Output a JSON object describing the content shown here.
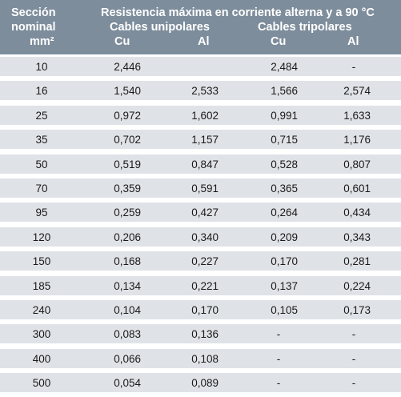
{
  "header": {
    "section_line1": "Sección",
    "section_line2": "nominal",
    "section_line3": "mm²",
    "main_title": "Resistencia máxima en corriente alterna y a 90 °C",
    "group1": "Cables unipolares",
    "group2": "Cables tripolares",
    "cu1": "Cu",
    "al1": "Al",
    "cu2": "Cu",
    "al2": "Al"
  },
  "rows": [
    [
      "10",
      "2,446",
      "",
      "2,484",
      "-"
    ],
    [
      "16",
      "1,540",
      "2,533",
      "1,566",
      "2,574"
    ],
    [
      "25",
      "0,972",
      "1,602",
      "0,991",
      "1,633"
    ],
    [
      "35",
      "0,702",
      "1,157",
      "0,715",
      "1,176"
    ],
    [
      "50",
      "0,519",
      "0,847",
      "0,528",
      "0,807"
    ],
    [
      "70",
      "0,359",
      "0,591",
      "0,365",
      "0,601"
    ],
    [
      "95",
      "0,259",
      "0,427",
      "0,264",
      "0,434"
    ],
    [
      "120",
      "0,206",
      "0,340",
      "0,209",
      "0,343"
    ],
    [
      "150",
      "0,168",
      "0,227",
      "0,170",
      "0,281"
    ],
    [
      "185",
      "0,134",
      "0,221",
      "0,137",
      "0,224"
    ],
    [
      "240",
      "0,104",
      "0,170",
      "0,105",
      "0,173"
    ],
    [
      "300",
      "0,083",
      "0,136",
      "-",
      "-"
    ],
    [
      "400",
      "0,066",
      "0,108",
      "-",
      "-"
    ],
    [
      "500",
      "0,054",
      "0,089",
      "-",
      "-"
    ]
  ],
  "colors": {
    "header_bg": "#7e8d9c",
    "row_bg": "#dfe3e7",
    "separator": "#ffffff"
  }
}
